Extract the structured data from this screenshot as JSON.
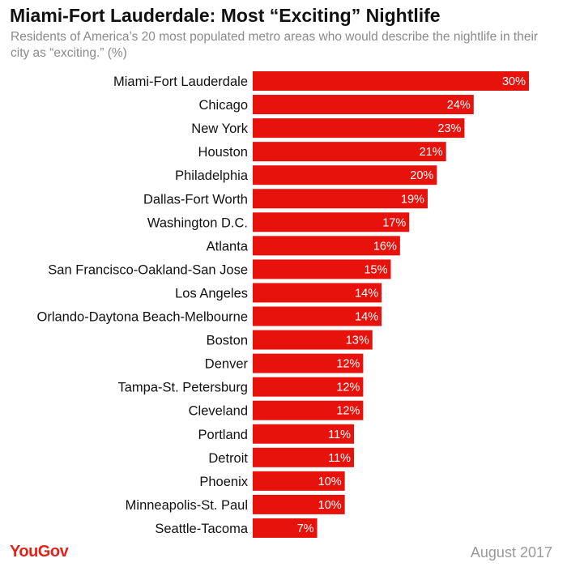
{
  "header": {
    "title": "Miami-Fort Lauderdale: Most “Exciting” Nightlife",
    "subtitle": "Residents of America’s 20 most populated metro areas who would describe the nightlife in their city as “exciting.” (%)"
  },
  "footer": {
    "logo": "YouGov",
    "date": "August 2017"
  },
  "colors": {
    "bar": "#e8120c",
    "label": "#111111",
    "value_text": "#ffffff"
  },
  "chart_data": {
    "type": "bar",
    "orientation": "horizontal",
    "categories": [
      "Miami-Fort Lauderdale",
      "Chicago",
      "New York",
      "Houston",
      "Philadelphia",
      "Dallas-Fort Worth",
      "Washington D.C.",
      "Atlanta",
      "San Francisco-Oakland-San Jose",
      "Los Angeles",
      "Orlando-Daytona Beach-Melbourne",
      "Boston",
      "Denver",
      "Tampa-St. Petersburg",
      "Cleveland",
      "Portland",
      "Detroit",
      "Phoenix",
      "Minneapolis-St. Paul",
      "Seattle-Tacoma"
    ],
    "values": [
      30,
      24,
      23,
      21,
      20,
      19,
      17,
      16,
      15,
      14,
      14,
      13,
      12,
      12,
      12,
      11,
      11,
      10,
      10,
      7
    ],
    "value_labels": [
      "30%",
      "24%",
      "23%",
      "21%",
      "20%",
      "19%",
      "17%",
      "16%",
      "15%",
      "14%",
      "14%",
      "13%",
      "12%",
      "12%",
      "12%",
      "11%",
      "11%",
      "10%",
      "10%",
      "7%"
    ],
    "unit": "%",
    "xlim": [
      0,
      30
    ],
    "grid": false,
    "legend": "none"
  }
}
